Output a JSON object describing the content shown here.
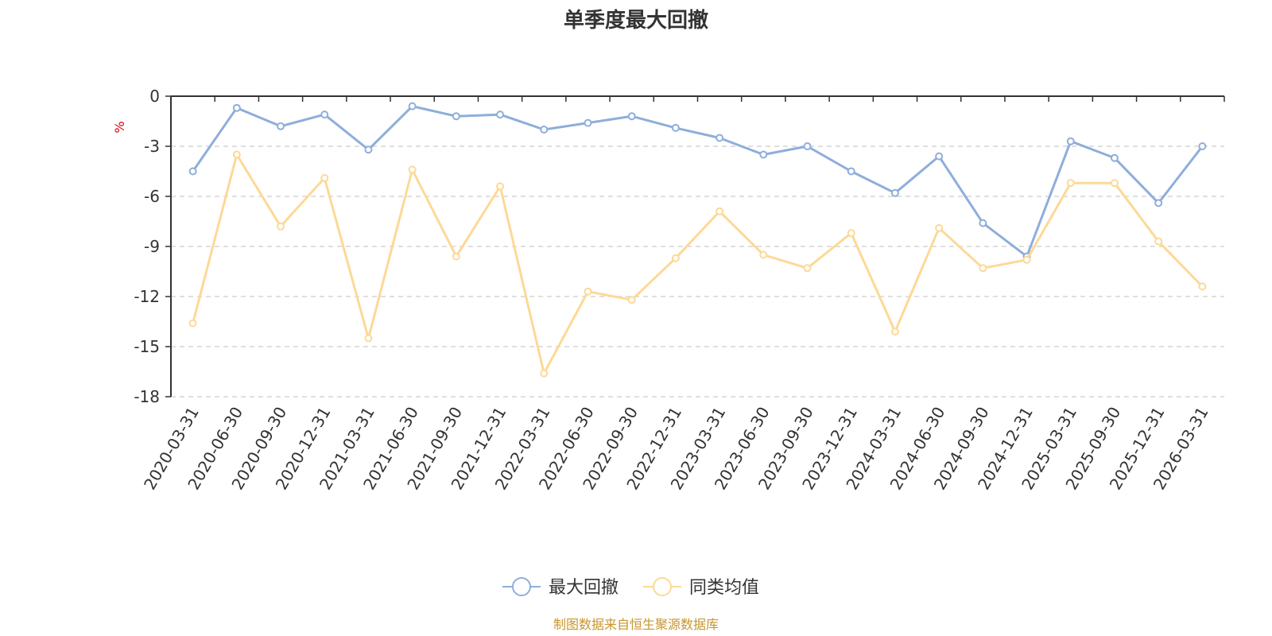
{
  "chart_data": {
    "type": "line",
    "title": "单季度最大回撤",
    "ylabel": "%",
    "ylim": [
      -18,
      0
    ],
    "yticks": [
      0,
      -3,
      -6,
      -9,
      -12,
      -15,
      -18
    ],
    "grid": true,
    "legend_position": "bottom-center",
    "categories": [
      "2020-03-31",
      "2020-06-30",
      "2020-09-30",
      "2020-12-31",
      "2021-03-31",
      "2021-06-30",
      "2021-09-30",
      "2021-12-31",
      "2022-03-31",
      "2022-06-30",
      "2022-09-30",
      "2022-12-31",
      "2023-03-31",
      "2023-06-30",
      "2023-09-30",
      "2023-12-31",
      "2024-03-31",
      "2024-06-30",
      "2024-09-30",
      "2024-12-31",
      "2025-03-31",
      "2025-09-30",
      "2025-12-31",
      "2026-03-31"
    ],
    "series": [
      {
        "name": "最大回撤",
        "color": "#8eaedb",
        "values": [
          -4.5,
          -0.7,
          -1.8,
          -1.1,
          -3.2,
          -0.6,
          -1.2,
          -1.1,
          -2.0,
          -1.6,
          -1.2,
          -1.9,
          -2.5,
          -3.5,
          -3.0,
          -4.5,
          -5.8,
          -3.6,
          -7.6,
          -9.6,
          -2.7,
          -3.7,
          -6.4,
          -3.0
        ]
      },
      {
        "name": "同类均值",
        "color": "#fdd996",
        "values": [
          -13.6,
          -3.5,
          -7.8,
          -4.9,
          -14.5,
          -4.4,
          -9.6,
          -5.4,
          -16.6,
          -11.7,
          -12.2,
          -9.7,
          -6.9,
          -9.5,
          -10.3,
          -8.2,
          -14.1,
          -7.9,
          -10.3,
          -9.8,
          -5.2,
          -5.2,
          -8.7,
          -11.4
        ]
      }
    ],
    "source": "制图数据来自恒生聚源数据库"
  }
}
